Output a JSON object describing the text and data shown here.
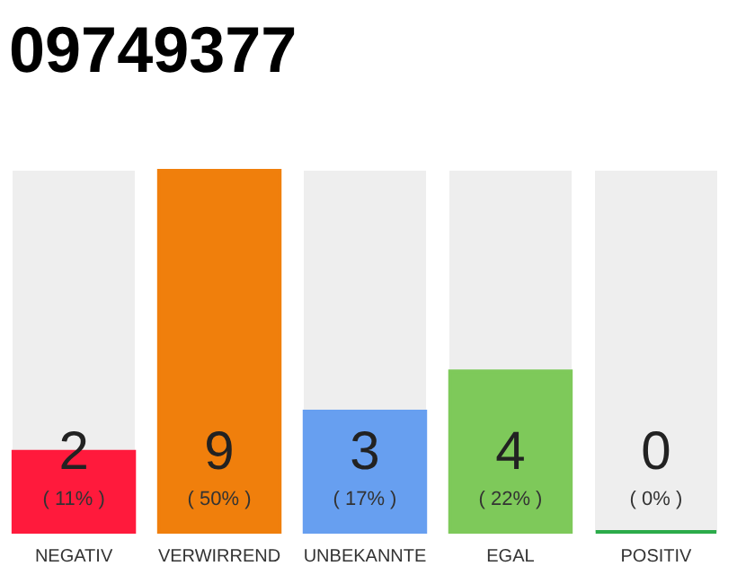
{
  "chart_data": {
    "type": "bar",
    "title": "09749377",
    "categories": [
      "NEGATIV",
      "VERWIRREND",
      "UNBEKANNTE",
      "EGAL",
      "POSITIV"
    ],
    "values": [
      2,
      9,
      3,
      4,
      0
    ],
    "colors": [
      "#ff1a3c",
      "#f07f0c",
      "#679ff0",
      "#7ec95a",
      "#2bab4a"
    ],
    "data_labels": true,
    "annotations": [
      "( 11% )",
      "( 50% )",
      "( 17% )",
      "( 22% )",
      "( 0% )"
    ]
  }
}
